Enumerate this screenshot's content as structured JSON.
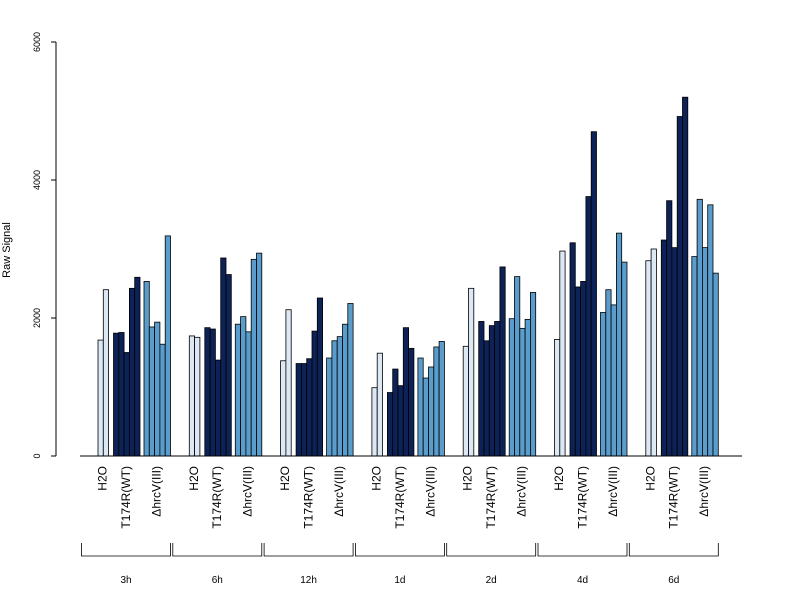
{
  "chart_data": {
    "type": "bar",
    "ylabel": "Raw Signal",
    "ylim": [
      0,
      6000
    ],
    "yticks": [
      "0",
      "2000",
      "4000",
      "6000"
    ],
    "series_colors": {
      "H2O": "#dde8f5",
      "T174R(WT)": "#0d2257",
      "ΔhrcV(III)": "#5a9dcc"
    },
    "groups": [
      {
        "time": "3h",
        "treatments": [
          {
            "name": "H2O",
            "values": [
              1680,
              2410
            ]
          },
          {
            "name": "T174R(WT)",
            "values": [
              1780,
              1790,
              1500,
              2430,
              2590
            ]
          },
          {
            "name": "ΔhrcV(III)",
            "values": [
              2530,
              1870,
              1940,
              1620,
              3190
            ]
          }
        ]
      },
      {
        "time": "6h",
        "treatments": [
          {
            "name": "H2O",
            "values": [
              1740,
              1720
            ]
          },
          {
            "name": "T174R(WT)",
            "values": [
              1860,
              1840,
              1390,
              2870,
              2630
            ]
          },
          {
            "name": "ΔhrcV(III)",
            "values": [
              1910,
              2020,
              1800,
              2850,
              2940
            ]
          }
        ]
      },
      {
        "time": "12h",
        "treatments": [
          {
            "name": "H2O",
            "values": [
              1380,
              2120
            ]
          },
          {
            "name": "T174R(WT)",
            "values": [
              1340,
              1340,
              1410,
              1810,
              2290
            ]
          },
          {
            "name": "ΔhrcV(III)",
            "values": [
              1420,
              1670,
              1730,
              1910,
              2210
            ]
          }
        ]
      },
      {
        "time": "1d",
        "treatments": [
          {
            "name": "H2O",
            "values": [
              990,
              1490
            ]
          },
          {
            "name": "T174R(WT)",
            "values": [
              920,
              1260,
              1020,
              1860,
              1560
            ]
          },
          {
            "name": "ΔhrcV(III)",
            "values": [
              1420,
              1130,
              1290,
              1580,
              1660
            ]
          }
        ]
      },
      {
        "time": "2d",
        "treatments": [
          {
            "name": "H2O",
            "values": [
              1590,
              2430
            ]
          },
          {
            "name": "T174R(WT)",
            "values": [
              1950,
              1670,
              1890,
              1950,
              2740
            ]
          },
          {
            "name": "ΔhrcV(III)",
            "values": [
              1990,
              2600,
              1850,
              1980,
              2370
            ]
          }
        ]
      },
      {
        "time": "4d",
        "treatments": [
          {
            "name": "H2O",
            "values": [
              1690,
              2970
            ]
          },
          {
            "name": "T174R(WT)",
            "values": [
              3090,
              2450,
              2530,
              3760,
              4700
            ]
          },
          {
            "name": "ΔhrcV(III)",
            "values": [
              2080,
              2410,
              2190,
              3230,
              2810
            ]
          }
        ]
      },
      {
        "time": "6d",
        "treatments": [
          {
            "name": "H2O",
            "values": [
              2830,
              3000
            ]
          },
          {
            "name": "T174R(WT)",
            "values": [
              3130,
              3700,
              3020,
              4920,
              5200
            ]
          },
          {
            "name": "ΔhrcV(III)",
            "values": [
              2890,
              3720,
              3020,
              3640,
              2650
            ]
          }
        ]
      }
    ]
  }
}
